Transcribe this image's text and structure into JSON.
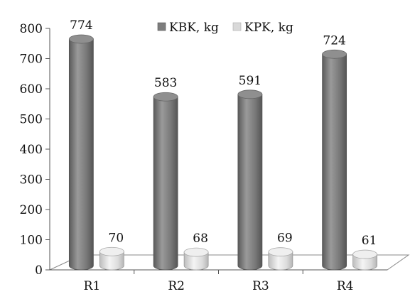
{
  "chart_data": {
    "type": "bar",
    "style": "3d-cylinder",
    "categories": [
      "R1",
      "R2",
      "R3",
      "R4"
    ],
    "series": [
      {
        "name": "KBK, kg",
        "values": [
          774,
          583,
          591,
          724
        ],
        "color": "#7d7d7d"
      },
      {
        "name": "KPK, kg",
        "values": [
          70,
          68,
          69,
          61
        ],
        "color": "#d9d9d9"
      }
    ],
    "ylim": [
      0,
      800
    ],
    "yticks": [
      0,
      100,
      200,
      300,
      400,
      500,
      600,
      700,
      800
    ],
    "data_labels": true,
    "grid": false,
    "legend_position": "top-right"
  }
}
